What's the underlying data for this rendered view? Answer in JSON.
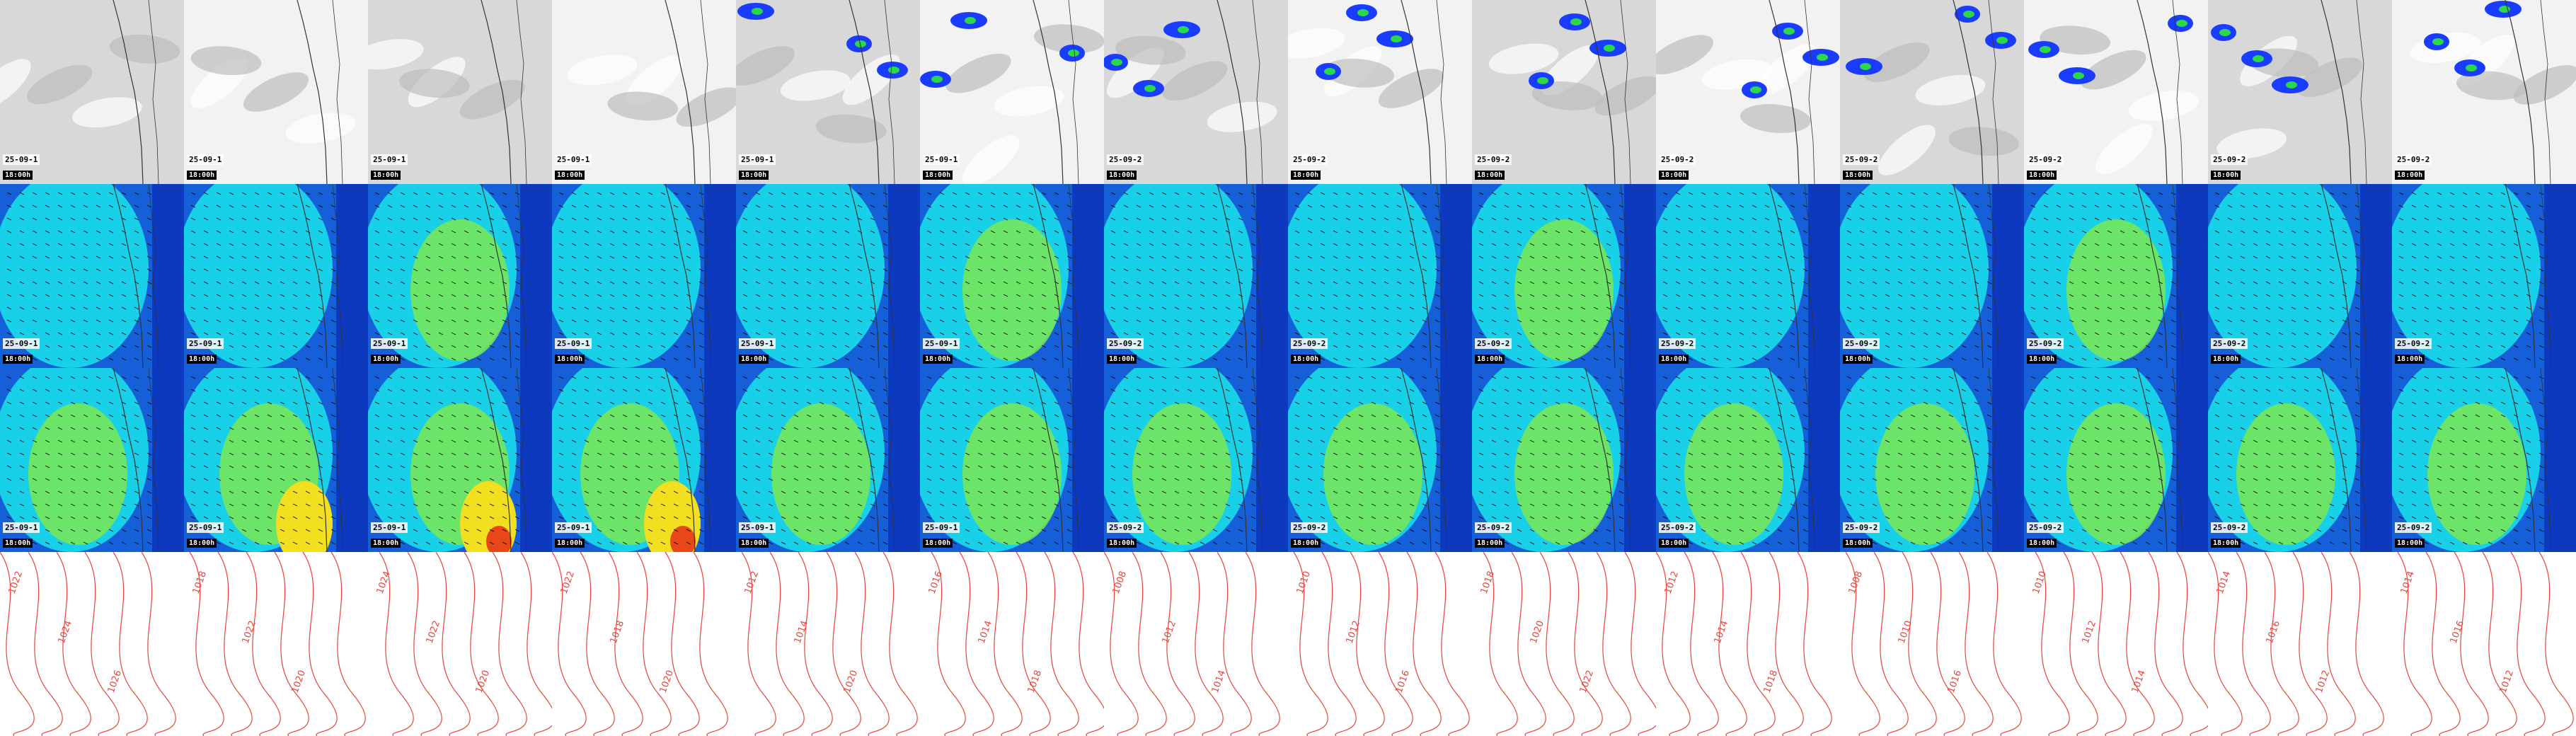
{
  "rows": [
    {
      "id": "precip",
      "tiles": [
        {
          "date": "25-09-1",
          "hour": "18:00h"
        },
        {
          "date": "25-09-1",
          "hour": "18:00h"
        },
        {
          "date": "25-09-1",
          "hour": "18:00h"
        },
        {
          "date": "25-09-1",
          "hour": "18:00h"
        },
        {
          "date": "25-09-1",
          "hour": "18:00h"
        },
        {
          "date": "25-09-1",
          "hour": "18:00h"
        },
        {
          "date": "25-09-2",
          "hour": "18:00h"
        },
        {
          "date": "25-09-2",
          "hour": "18:00h"
        },
        {
          "date": "25-09-2",
          "hour": "18:00h"
        },
        {
          "date": "25-09-2",
          "hour": "18:00h"
        },
        {
          "date": "25-09-2",
          "hour": "18:00h"
        },
        {
          "date": "25-09-2",
          "hour": "18:00h"
        },
        {
          "date": "25-09-2",
          "hour": "18:00h"
        },
        {
          "date": "25-09-2",
          "hour": "18:00h"
        }
      ]
    },
    {
      "id": "wind-surface",
      "tiles": [
        {
          "date": "25-09-1",
          "hour": "18:00h"
        },
        {
          "date": "25-09-1",
          "hour": "18:00h"
        },
        {
          "date": "25-09-1",
          "hour": "18:00h"
        },
        {
          "date": "25-09-1",
          "hour": "18:00h"
        },
        {
          "date": "25-09-1",
          "hour": "18:00h"
        },
        {
          "date": "25-09-1",
          "hour": "18:00h"
        },
        {
          "date": "25-09-2",
          "hour": "18:00h"
        },
        {
          "date": "25-09-2",
          "hour": "18:00h"
        },
        {
          "date": "25-09-2",
          "hour": "18:00h"
        },
        {
          "date": "25-09-2",
          "hour": "18:00h"
        },
        {
          "date": "25-09-2",
          "hour": "18:00h"
        },
        {
          "date": "25-09-2",
          "hour": "18:00h"
        },
        {
          "date": "25-09-2",
          "hour": "18:00h"
        },
        {
          "date": "25-09-2",
          "hour": "18:00h"
        }
      ]
    },
    {
      "id": "wind-upper",
      "tiles": [
        {
          "date": "25-09-1",
          "hour": "18:00h"
        },
        {
          "date": "25-09-1",
          "hour": "18:00h"
        },
        {
          "date": "25-09-1",
          "hour": "18:00h"
        },
        {
          "date": "25-09-1",
          "hour": "18:00h"
        },
        {
          "date": "25-09-1",
          "hour": "18:00h"
        },
        {
          "date": "25-09-1",
          "hour": "18:00h"
        },
        {
          "date": "25-09-2",
          "hour": "18:00h"
        },
        {
          "date": "25-09-2",
          "hour": "18:00h"
        },
        {
          "date": "25-09-2",
          "hour": "18:00h"
        },
        {
          "date": "25-09-2",
          "hour": "18:00h"
        },
        {
          "date": "25-09-2",
          "hour": "18:00h"
        },
        {
          "date": "25-09-2",
          "hour": "18:00h"
        },
        {
          "date": "25-09-2",
          "hour": "18:00h"
        },
        {
          "date": "25-09-2",
          "hour": "18:00h"
        }
      ]
    },
    {
      "id": "pressure",
      "tiles": [
        {
          "labels": [
            "1022",
            "1024",
            "1026"
          ]
        },
        {
          "labels": [
            "1018",
            "1022",
            "1020"
          ]
        },
        {
          "labels": [
            "1024",
            "1022",
            "1020"
          ]
        },
        {
          "labels": [
            "1022",
            "1018",
            "1020"
          ]
        },
        {
          "labels": [
            "1012",
            "1014",
            "1020"
          ]
        },
        {
          "labels": [
            "1016",
            "1014",
            "1018"
          ]
        },
        {
          "labels": [
            "1008",
            "1012",
            "1014"
          ]
        },
        {
          "labels": [
            "1010",
            "1012",
            "1016"
          ]
        },
        {
          "labels": [
            "1018",
            "1020",
            "1022"
          ]
        },
        {
          "labels": [
            "1012",
            "1014",
            "1018"
          ]
        },
        {
          "labels": [
            "1008",
            "1010",
            "1016"
          ]
        },
        {
          "labels": [
            "1010",
            "1012",
            "1014"
          ]
        },
        {
          "labels": [
            "1014",
            "1016",
            "1012"
          ]
        },
        {
          "labels": [
            "1014",
            "1016",
            "1012"
          ]
        }
      ]
    }
  ],
  "colors": {
    "precip_bg": "#d8d8d8",
    "precip_light": "#f2f2f2",
    "rain": "#1a3cff",
    "rain_heavy": "#2ad84a",
    "wind_low": "#1560d8",
    "wind_mid": "#18d0e8",
    "wind_high": "#7ae850",
    "wind_max": "#f2e020",
    "wind_extreme": "#e84818",
    "contour": "#e8443a",
    "coast": "#333333"
  }
}
